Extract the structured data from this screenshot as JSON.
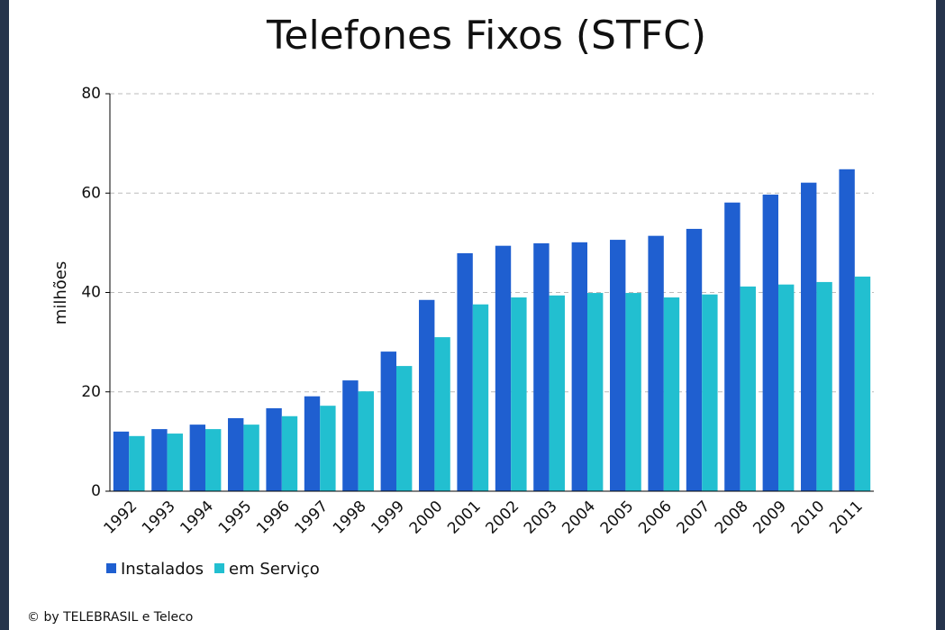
{
  "chart_data": {
    "type": "bar",
    "title": "Telefones Fixos (STFC)",
    "y_label": "milhões",
    "categories": [
      "1992",
      "1993",
      "1994",
      "1995",
      "1996",
      "1997",
      "1998",
      "1999",
      "2000",
      "2001",
      "2002",
      "2003",
      "2004",
      "2005",
      "2006",
      "2007",
      "2008",
      "2009",
      "2010",
      "2011"
    ],
    "series": [
      {
        "name": "Instalados",
        "color": "#1f5fd0",
        "values": [
          12.0,
          12.5,
          13.4,
          14.7,
          16.7,
          19.1,
          22.3,
          28.1,
          38.5,
          47.9,
          49.4,
          49.9,
          50.1,
          50.6,
          51.4,
          52.8,
          58.1,
          59.7,
          62.1,
          64.8
        ]
      },
      {
        "name": "em Serviço",
        "color": "#22bfd0",
        "values": [
          11.1,
          11.6,
          12.5,
          13.4,
          15.1,
          17.2,
          20.1,
          25.2,
          31.0,
          37.6,
          39.0,
          39.4,
          39.9,
          39.9,
          39.0,
          39.6,
          41.2,
          41.6,
          42.1,
          43.2
        ]
      }
    ],
    "ylim": [
      0,
      80
    ],
    "yticks": [
      0,
      20,
      40,
      60,
      80
    ],
    "grid": true,
    "legend": "bottom-left",
    "footer": "© by TELEBRASIL e Teleco"
  }
}
